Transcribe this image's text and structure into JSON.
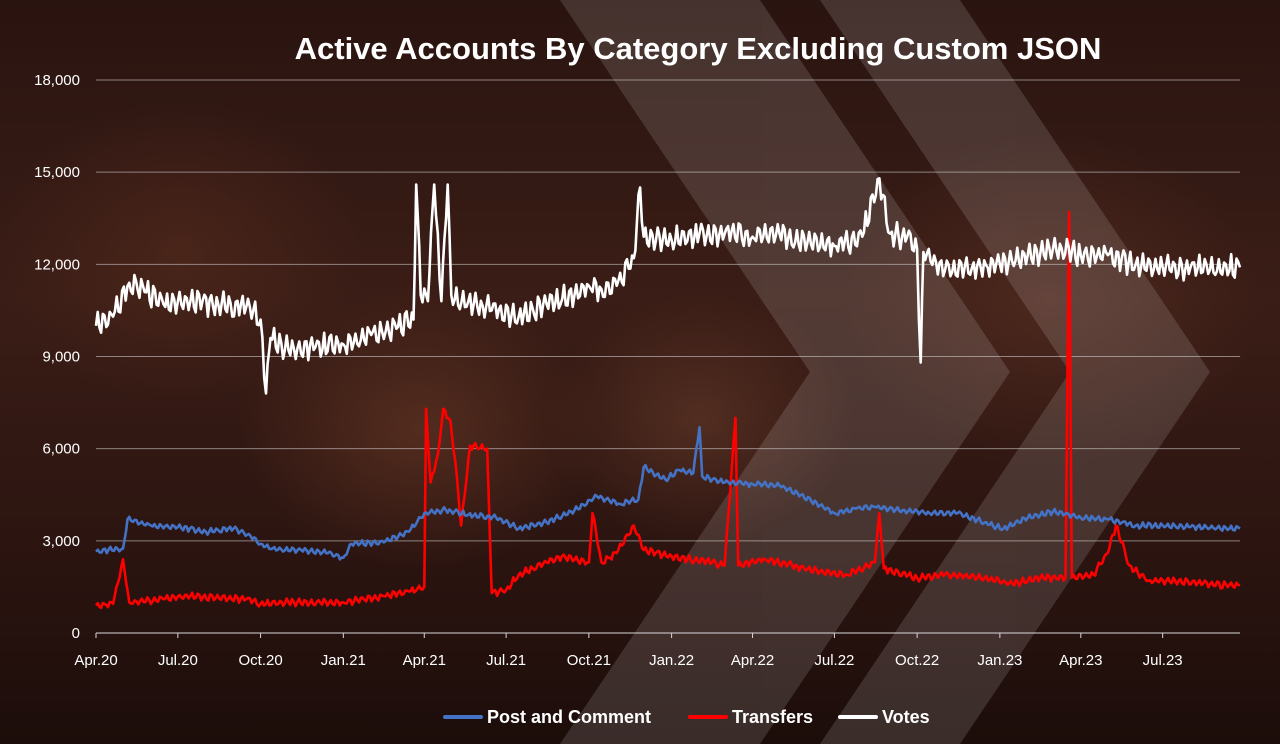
{
  "chart_data": {
    "type": "line",
    "title": "Active Accounts By Category Excluding Custom JSON",
    "xlabel": "",
    "ylabel": "",
    "ylim": [
      0,
      18000
    ],
    "yticks": [
      0,
      3000,
      6000,
      9000,
      12000,
      15000,
      18000
    ],
    "ytick_labels": [
      "0",
      "3,000",
      "6,000",
      "9,000",
      "12,000",
      "15,000",
      "18,000"
    ],
    "xlim": [
      "2020-04-01",
      "2023-09-25"
    ],
    "xticks": [
      "2020-04-01",
      "2020-07-01",
      "2020-10-01",
      "2021-01-01",
      "2021-04-01",
      "2021-07-01",
      "2021-10-01",
      "2022-01-01",
      "2022-04-01",
      "2022-07-01",
      "2022-10-01",
      "2023-01-01",
      "2023-04-01",
      "2023-07-01"
    ],
    "xtick_labels": [
      "Apr.20",
      "Jul.20",
      "Oct.20",
      "Jan.21",
      "Apr.21",
      "Jul.21",
      "Oct.21",
      "Jan.22",
      "Apr.22",
      "Jul.22",
      "Oct.22",
      "Jan.23",
      "Apr.23",
      "Jul.23"
    ],
    "grid": "horizontal",
    "legend_position": "bottom",
    "series": [
      {
        "name": "Post and Comment",
        "color": "#4472c4",
        "points": [
          [
            "2020-04-01",
            2650
          ],
          [
            "2020-05-01",
            2750
          ],
          [
            "2020-05-06",
            3700
          ],
          [
            "2020-06-01",
            3500
          ],
          [
            "2020-07-01",
            3450
          ],
          [
            "2020-08-01",
            3300
          ],
          [
            "2020-09-01",
            3400
          ],
          [
            "2020-09-20",
            3150
          ],
          [
            "2020-10-01",
            2900
          ],
          [
            "2020-10-20",
            2700
          ],
          [
            "2020-11-15",
            2700
          ],
          [
            "2020-12-15",
            2600
          ],
          [
            "2021-01-01",
            2450
          ],
          [
            "2021-01-10",
            2900
          ],
          [
            "2021-02-15",
            2950
          ],
          [
            "2021-03-15",
            3300
          ],
          [
            "2021-04-01",
            3900
          ],
          [
            "2021-04-25",
            4000
          ],
          [
            "2021-05-20",
            3850
          ],
          [
            "2021-06-20",
            3750
          ],
          [
            "2021-07-15",
            3400
          ],
          [
            "2021-08-15",
            3600
          ],
          [
            "2021-09-15",
            4000
          ],
          [
            "2021-10-10",
            4450
          ],
          [
            "2021-11-05",
            4200
          ],
          [
            "2021-11-25",
            4350
          ],
          [
            "2021-12-01",
            5400
          ],
          [
            "2021-12-25",
            5000
          ],
          [
            "2022-01-10",
            5300
          ],
          [
            "2022-01-25",
            5200
          ],
          [
            "2022-02-01",
            6700
          ],
          [
            "2022-02-04",
            5100
          ],
          [
            "2022-03-01",
            4900
          ],
          [
            "2022-04-01",
            4850
          ],
          [
            "2022-05-01",
            4800
          ],
          [
            "2022-05-25",
            4500
          ],
          [
            "2022-06-15",
            4150
          ],
          [
            "2022-07-01",
            3900
          ],
          [
            "2022-07-25",
            4050
          ],
          [
            "2022-08-15",
            4100
          ],
          [
            "2022-09-15",
            4000
          ],
          [
            "2022-10-15",
            3900
          ],
          [
            "2022-11-15",
            3900
          ],
          [
            "2022-12-15",
            3600
          ],
          [
            "2023-01-05",
            3400
          ],
          [
            "2023-02-01",
            3750
          ],
          [
            "2023-03-01",
            3950
          ],
          [
            "2023-04-01",
            3750
          ],
          [
            "2023-05-01",
            3700
          ],
          [
            "2023-06-01",
            3500
          ],
          [
            "2023-07-01",
            3500
          ],
          [
            "2023-08-01",
            3450
          ],
          [
            "2023-09-25",
            3400
          ]
        ]
      },
      {
        "name": "Transfers",
        "color": "#ff0000",
        "points": [
          [
            "2020-04-01",
            900
          ],
          [
            "2020-04-20",
            950
          ],
          [
            "2020-05-01",
            2400
          ],
          [
            "2020-05-08",
            1000
          ],
          [
            "2020-06-15",
            1100
          ],
          [
            "2020-07-15",
            1200
          ],
          [
            "2020-09-15",
            1100
          ],
          [
            "2020-10-01",
            950
          ],
          [
            "2020-11-01",
            1000
          ],
          [
            "2021-01-01",
            1000
          ],
          [
            "2021-02-15",
            1200
          ],
          [
            "2021-03-15",
            1350
          ],
          [
            "2021-04-01",
            1500
          ],
          [
            "2021-04-03",
            7300
          ],
          [
            "2021-04-08",
            4900
          ],
          [
            "2021-04-16",
            5800
          ],
          [
            "2021-04-22",
            7300
          ],
          [
            "2021-04-30",
            6900
          ],
          [
            "2021-05-07",
            5200
          ],
          [
            "2021-05-12",
            3500
          ],
          [
            "2021-05-22",
            6100
          ],
          [
            "2021-06-10",
            6000
          ],
          [
            "2021-06-15",
            1300
          ],
          [
            "2021-07-01",
            1400
          ],
          [
            "2021-07-15",
            1900
          ],
          [
            "2021-08-15",
            2300
          ],
          [
            "2021-09-01",
            2500
          ],
          [
            "2021-10-01",
            2300
          ],
          [
            "2021-10-05",
            3900
          ],
          [
            "2021-10-15",
            2300
          ],
          [
            "2021-11-01",
            2600
          ],
          [
            "2021-11-20",
            3500
          ],
          [
            "2021-12-01",
            2700
          ],
          [
            "2022-01-01",
            2500
          ],
          [
            "2022-02-15",
            2300
          ],
          [
            "2022-03-01",
            2200
          ],
          [
            "2022-03-13",
            7000
          ],
          [
            "2022-03-16",
            2200
          ],
          [
            "2022-04-15",
            2400
          ],
          [
            "2022-05-15",
            2200
          ],
          [
            "2022-06-15",
            2000
          ],
          [
            "2022-07-15",
            1900
          ],
          [
            "2022-08-15",
            2300
          ],
          [
            "2022-08-20",
            3900
          ],
          [
            "2022-08-25",
            2100
          ],
          [
            "2022-10-01",
            1800
          ],
          [
            "2022-11-01",
            1900
          ],
          [
            "2022-12-15",
            1800
          ],
          [
            "2023-01-15",
            1600
          ],
          [
            "2023-02-15",
            1800
          ],
          [
            "2023-03-15",
            1800
          ],
          [
            "2023-03-19",
            13700
          ],
          [
            "2023-03-22",
            1800
          ],
          [
            "2023-04-15",
            1900
          ],
          [
            "2023-05-01",
            2600
          ],
          [
            "2023-05-10",
            3500
          ],
          [
            "2023-05-25",
            2200
          ],
          [
            "2023-06-15",
            1700
          ],
          [
            "2023-07-15",
            1700
          ],
          [
            "2023-08-15",
            1600
          ],
          [
            "2023-09-25",
            1550
          ]
        ]
      },
      {
        "name": "Votes",
        "color": "#ffffff",
        "points": [
          [
            "2020-04-01",
            10000
          ],
          [
            "2020-04-20",
            10300
          ],
          [
            "2020-05-08",
            11400
          ],
          [
            "2020-05-25",
            11100
          ],
          [
            "2020-06-15",
            10700
          ],
          [
            "2020-07-15",
            10800
          ],
          [
            "2020-08-15",
            10700
          ],
          [
            "2020-09-15",
            10600
          ],
          [
            "2020-10-01",
            10200
          ],
          [
            "2020-10-07",
            7800
          ],
          [
            "2020-10-12",
            9600
          ],
          [
            "2020-11-01",
            9200
          ],
          [
            "2020-12-01",
            9300
          ],
          [
            "2021-01-01",
            9400
          ],
          [
            "2021-02-01",
            9700
          ],
          [
            "2021-03-01",
            9900
          ],
          [
            "2021-03-20",
            10200
          ],
          [
            "2021-03-23",
            14600
          ],
          [
            "2021-03-28",
            11000
          ],
          [
            "2021-04-05",
            10800
          ],
          [
            "2021-04-12",
            14600
          ],
          [
            "2021-04-20",
            10800
          ],
          [
            "2021-04-27",
            14600
          ],
          [
            "2021-05-01",
            11000
          ],
          [
            "2021-05-20",
            10800
          ],
          [
            "2021-06-15",
            10500
          ],
          [
            "2021-07-15",
            10300
          ],
          [
            "2021-08-15",
            10700
          ],
          [
            "2021-09-15",
            11000
          ],
          [
            "2021-10-01",
            11300
          ],
          [
            "2021-10-15",
            11200
          ],
          [
            "2021-11-01",
            11300
          ],
          [
            "2021-11-20",
            12200
          ],
          [
            "2021-11-27",
            14500
          ],
          [
            "2021-12-01",
            12900
          ],
          [
            "2022-01-01",
            12800
          ],
          [
            "2022-02-01",
            13000
          ],
          [
            "2022-03-01",
            13000
          ],
          [
            "2022-04-01",
            12900
          ],
          [
            "2022-05-01",
            13000
          ],
          [
            "2022-06-01",
            12700
          ],
          [
            "2022-07-01",
            12600
          ],
          [
            "2022-08-01",
            12900
          ],
          [
            "2022-08-20",
            14800
          ],
          [
            "2022-09-01",
            13000
          ],
          [
            "2022-09-20",
            12900
          ],
          [
            "2022-10-01",
            12500
          ],
          [
            "2022-10-05",
            8800
          ],
          [
            "2022-10-08",
            12400
          ],
          [
            "2022-11-01",
            11800
          ],
          [
            "2022-12-01",
            11900
          ],
          [
            "2023-01-01",
            12000
          ],
          [
            "2023-02-01",
            12300
          ],
          [
            "2023-03-01",
            12500
          ],
          [
            "2023-04-01",
            12300
          ],
          [
            "2023-05-01",
            12300
          ],
          [
            "2023-06-01",
            12000
          ],
          [
            "2023-07-01",
            11900
          ],
          [
            "2023-08-01",
            11900
          ],
          [
            "2023-09-25",
            11900
          ]
        ]
      }
    ]
  }
}
